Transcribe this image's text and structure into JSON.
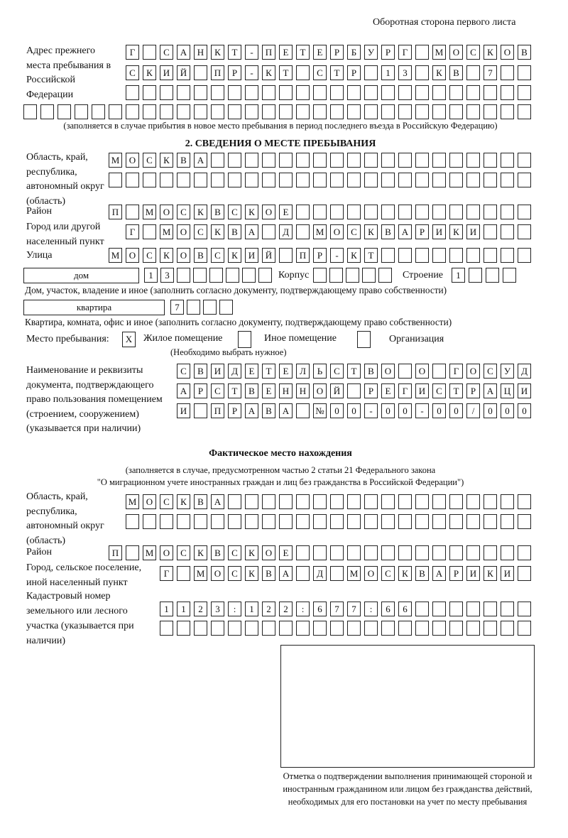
{
  "header": {
    "page_side": "Оборотная сторона первого листа"
  },
  "previous_address": {
    "label": "Адрес прежнего места пребывания в Российской Федерации",
    "rows": [
      "Г САНКТ-ПЕТЕРБУРГ МОСКОВ",
      "СКИЙ ПР-КТ СТР 13 КВ 7  ",
      "                        ",
      "                              "
    ],
    "note": "(заполняется в случае прибытия в новое место пребывания в период последнего въезда в Российскую Федерацию)"
  },
  "section2": {
    "title": "2. СВЕДЕНИЯ О МЕСТЕ ПРЕБЫВАНИЯ",
    "region_label": "Область, край, республика, автономный округ (область)",
    "region_rows": [
      "МОСКВА                   ",
      "                         "
    ],
    "district_label": "Район",
    "district": "П МОСКВСКОЕ              ",
    "city_label": "Город или другой населенный пункт",
    "city": "Г МОСКВА Д МОСКВАРИКИ   ",
    "street_label": "Улица",
    "street": "МОСКОВСКИЙ ПР-КТ         ",
    "house_type": "дом",
    "house_number": "13      ",
    "korpus_label": "Корпус",
    "korpus": "     ",
    "stroenie_label": "Строение",
    "stroenie": "1   ",
    "house_note": "Дом, участок, владение и иное (заполнить согласно документу, подтверждающему право собственности)",
    "apt_type": "квартира",
    "apt_number": "7   ",
    "apt_note": "Квартира, комната, офис и иное (заполнить согласно документу, подтверждающему право собственности)",
    "stay_place_label": "Место пребывания:",
    "options": [
      {
        "label": "Жилое помещение",
        "mark": "X"
      },
      {
        "label": "Иное помещение",
        "mark": ""
      },
      {
        "label": "Организация",
        "mark": ""
      }
    ],
    "choose_note": "(Необходимо выбрать нужное)",
    "doc_label": "Наименование и реквизиты документа, подтверждающего право пользования помещением (строением, сооружением) (указывается при наличии)",
    "doc_rows": [
      "СВИДЕТЕЛЬСТВО О ГОСУД",
      "АРСТВЕННОЙ РЕГИСТРАЦИ",
      "И ПРАВА №00-00-00/000"
    ]
  },
  "actual": {
    "title": "Фактическое место нахождения",
    "note1": "(заполняется в случае, предусмотренном частью 2 статьи 21 Федерального закона",
    "note2": "\"О миграционном учете иностранных граждан и лиц без гражданства в Российской Федерации\")",
    "region_label": "Область, край, республика, автономный округ (область)",
    "region_rows": [
      "МОСКВА                  ",
      "                        "
    ],
    "district_label": "Район",
    "district": "П МОСКВСКОЕ              ",
    "city_label": "Город, сельское поселение, иной населенный пункт",
    "city": "Г МОСКВА Д МОСКВАРИКИ ",
    "cadastral_label": "Кадастровый номер земельного или лесного участка (указывается при наличии)",
    "cadastral_rows": [
      "1123:122:677:66       ",
      "                      "
    ]
  },
  "stamp": {
    "caption": "Отметка о подтверждении выполнения принимающей стороной и иностранным гражданином или лицом без гражданства действий, необходимых для его постановки на учет по месту пребывания"
  }
}
